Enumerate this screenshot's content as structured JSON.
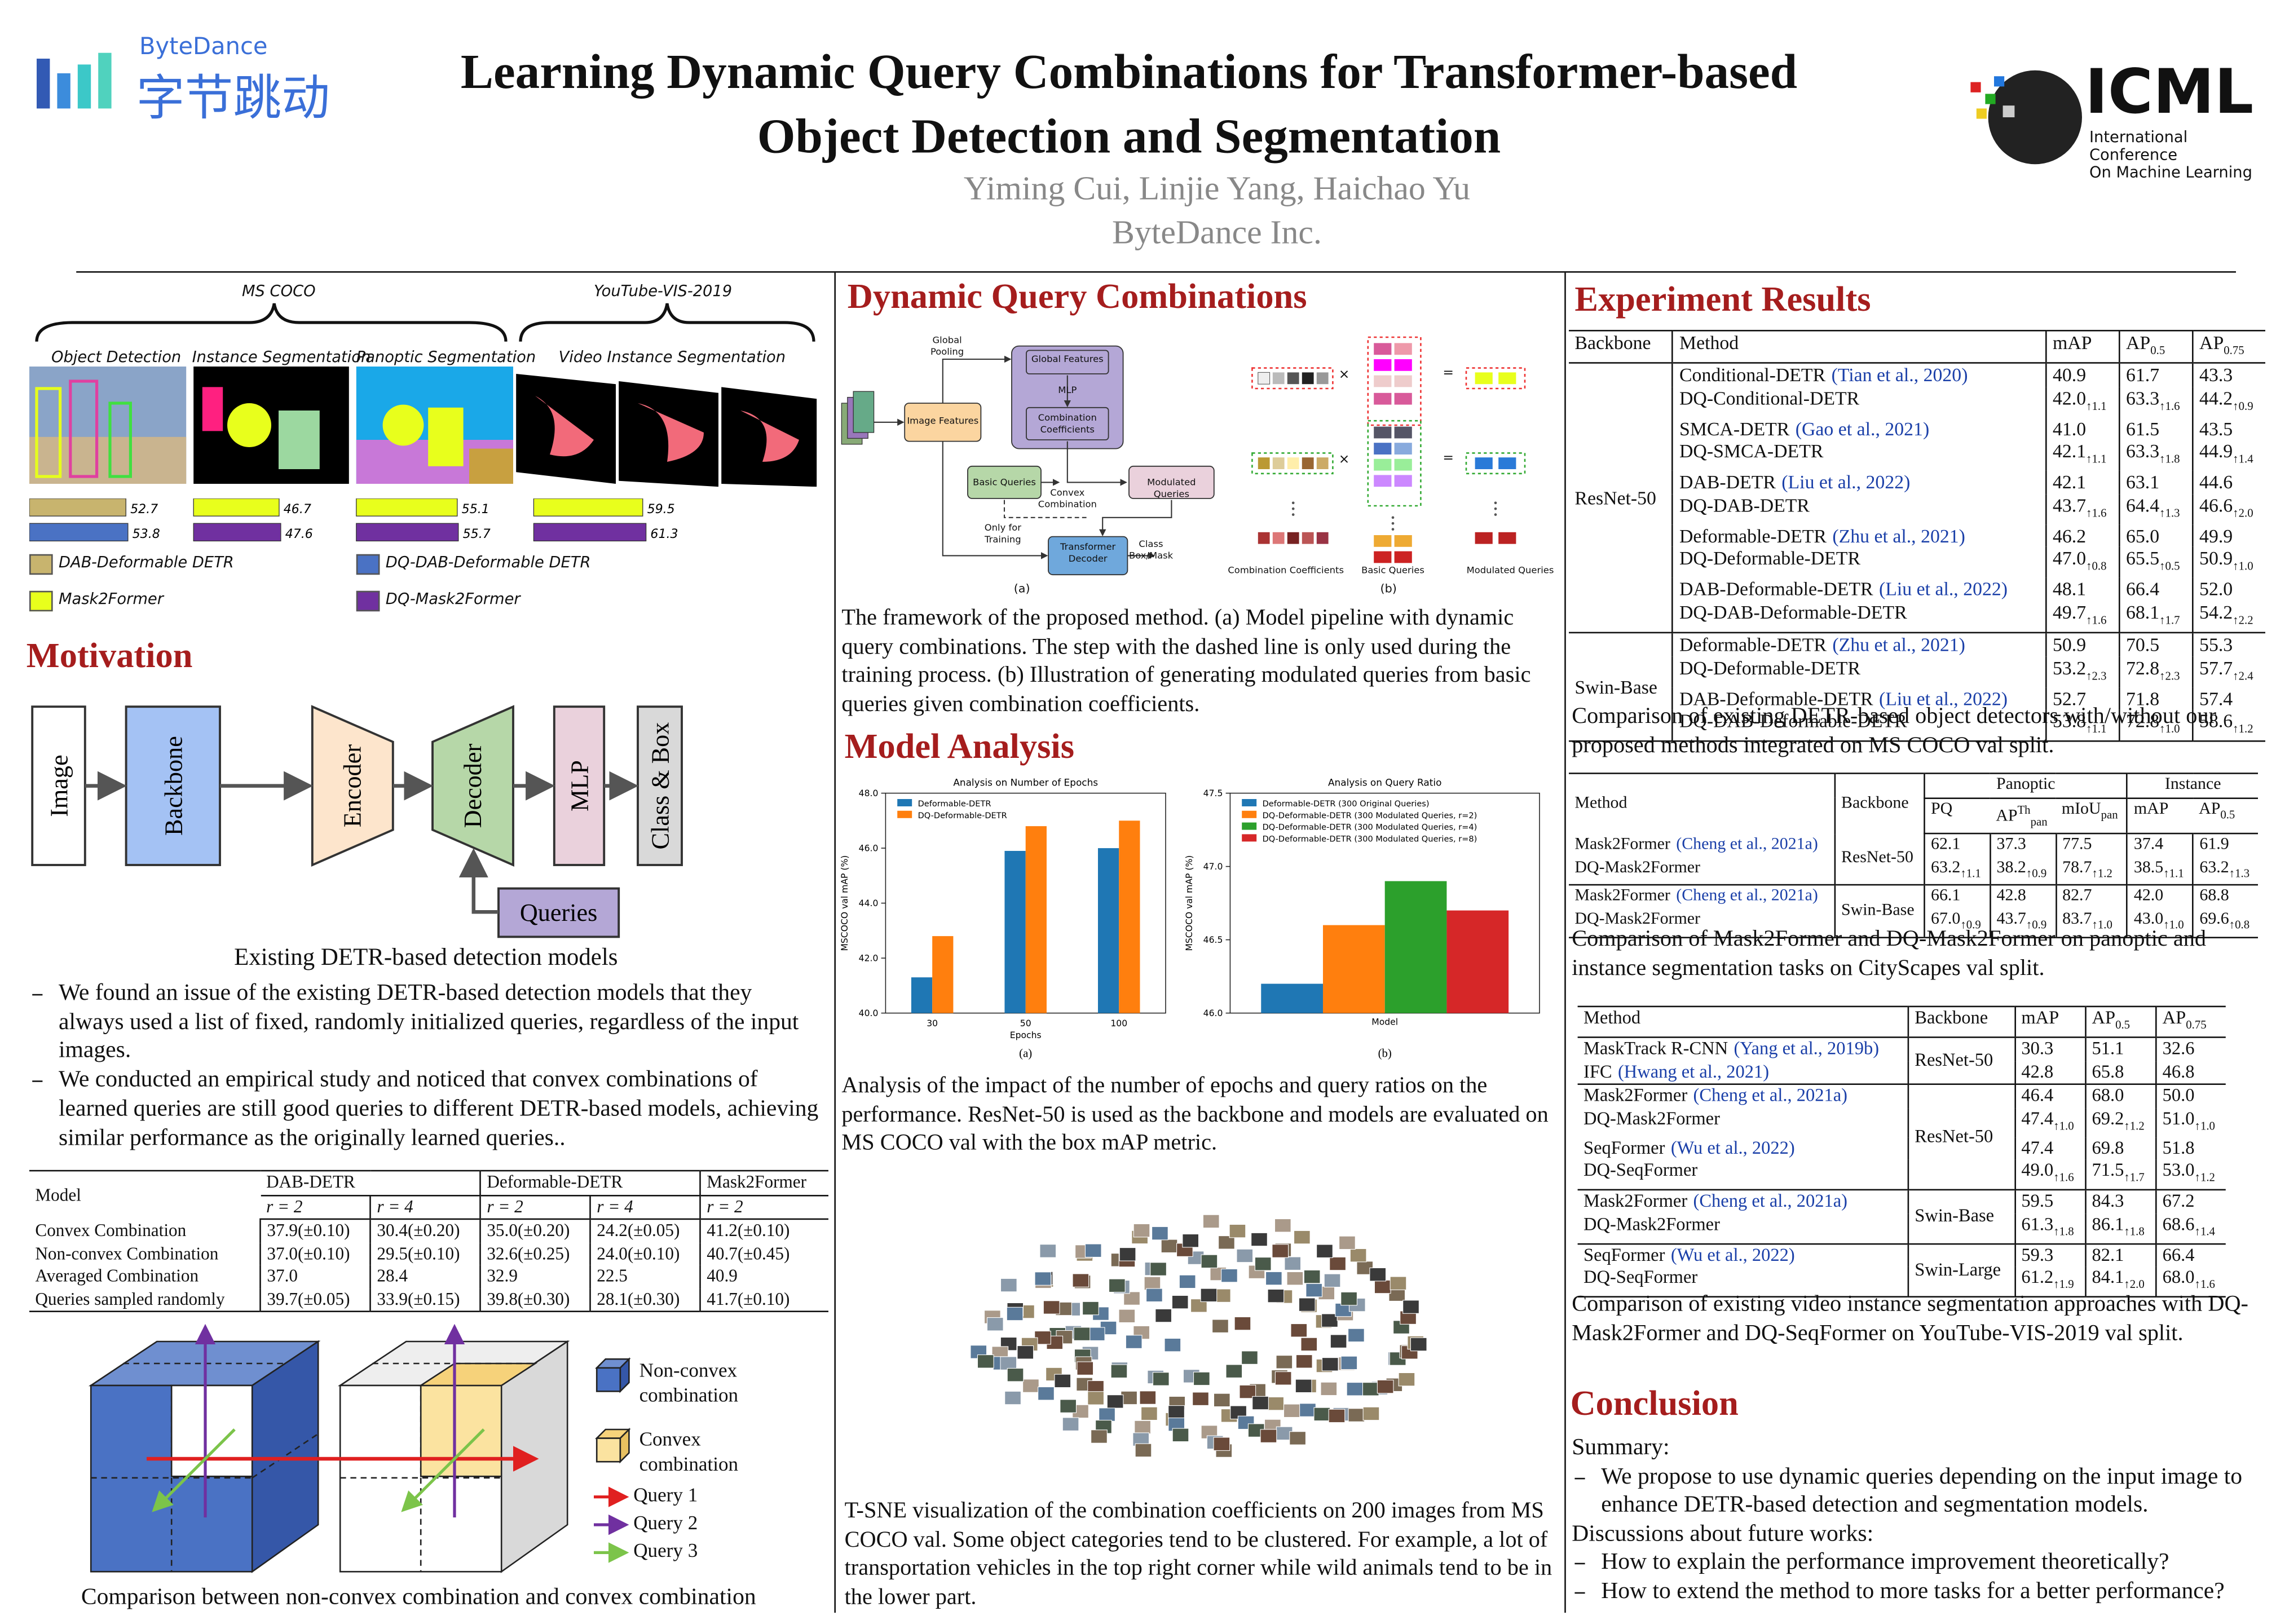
{
  "header": {
    "org_en": "ByteDance",
    "org_cn": "字节跳动",
    "title": [
      "Learning Dynamic Query Combinations for Transformer-based",
      "Object Detection and Segmentation"
    ],
    "authors": "Yiming Cui, Linjie Yang, Haichao Yu",
    "affiliation": "ByteDance Inc.",
    "conf": "ICML",
    "conf_full": [
      "International Conference",
      "On Machine Learning"
    ]
  },
  "teaser": {
    "datasets": [
      "MS COCO",
      "YouTube-VIS-2019"
    ],
    "tasks": [
      "Object Detection",
      "Instance Segmentation",
      "Panoptic Segmentation",
      "Video Instance Segmentation"
    ],
    "groups": [
      {
        "values": [
          52.7,
          53.8
        ],
        "colors": [
          "#c8b46e",
          "#4a72c4"
        ]
      },
      {
        "values": [
          46.7,
          47.6
        ],
        "colors": [
          "#e8ff1c",
          "#7030a0"
        ]
      },
      {
        "values": [
          55.1,
          55.7
        ],
        "colors": [
          "#e8ff1c",
          "#7030a0"
        ]
      },
      {
        "values": [
          59.5,
          61.3
        ],
        "colors": [
          "#e8ff1c",
          "#7030a0"
        ]
      }
    ],
    "legend": [
      {
        "name": "DAB-Deformable DETR",
        "color": "#c8b46e"
      },
      {
        "name": "Mask2Former",
        "color": "#e8ff1c"
      },
      {
        "name": "DQ-DAB-Deformable DETR",
        "color": "#4a72c4"
      },
      {
        "name": "DQ-Mask2Former",
        "color": "#7030a0"
      }
    ]
  },
  "motivation": {
    "heading": "Motivation",
    "pipeline": [
      "Image",
      "Backbone",
      "Encoder",
      "Decoder",
      "MLP",
      "Class & Box"
    ],
    "queries": "Queries",
    "caption": "Existing DETR-based detection models",
    "bullets": [
      "We found an issue of the existing DETR-based detection models that they always used a list of fixed, randomly initialized queries, regardless of the input images.",
      "We conducted an empirical study and noticed that convex combinations of learned queries are still good queries to different DETR-based models, achieving similar performance as the originally learned queries.."
    ],
    "table": {
      "header": [
        "Model",
        "DAB-DETR",
        "Deformable-DETR",
        "Mask2Former"
      ],
      "ratios": [
        "r = 2",
        "r = 4",
        "r = 2",
        "r = 4",
        "r = 2"
      ],
      "rows": [
        [
          "Convex Combination",
          "37.9(±0.10)",
          "30.4(±0.20)",
          "35.0(±0.20)",
          "24.2(±0.05)",
          "41.2(±0.10)"
        ],
        [
          "Non-convex Combination",
          "37.0(±0.10)",
          "29.5(±0.10)",
          "32.6(±0.25)",
          "24.0(±0.10)",
          "40.7(±0.45)"
        ],
        [
          "Averaged Combination",
          "37.0",
          "28.4",
          "32.9",
          "22.5",
          "40.9"
        ],
        [
          "Queries sampled randomly",
          "39.7(±0.05)",
          "33.9(±0.15)",
          "39.8(±0.30)",
          "28.1(±0.30)",
          "41.7(±0.10)"
        ]
      ]
    },
    "cube_legend": [
      "Non-convex combination",
      "Convex combination"
    ],
    "queries_legend": [
      "Query 1",
      "Query 2",
      "Query 3"
    ],
    "cube_caption": "Comparison between non-convex combination and convex combination"
  },
  "dynamic": {
    "heading": "Dynamic Query Combinations",
    "fig_a": {
      "global_pooling": "Global Pooling",
      "global_features": "Global Features",
      "mlp": "MLP",
      "coefficients": "Combination Coefficients",
      "image_features": "Image Features",
      "basic": "Basic Queries",
      "modulated": "Modulated Queries",
      "convex": "Convex Combination",
      "only_training": "Only for Training",
      "decoder": "Transformer Decoder",
      "output": "Class Box/Mask",
      "label": "(a)"
    },
    "fig_b": {
      "ops": [
        "×",
        "="
      ],
      "coefficients": "Combination Coefficients",
      "basic": "Basic Queries",
      "modulated": "Modulated Queries",
      "label": "(b)"
    },
    "caption": "The framework of the proposed method. (a) Model pipeline with dynamic query combinations. The step with the dashed line is only used during the training process. (b) Illustration of generating modulated queries from basic queries given combination coefficients."
  },
  "analysis": {
    "heading": "Model Analysis",
    "charts": [
      {
        "type": "bar",
        "title": "Analysis on Number of Epochs",
        "xlabel": "Epochs",
        "ylabel": "MSCOCO val mAP (%)",
        "label": "(a)",
        "categories": [
          "30",
          "50",
          "100"
        ],
        "series": [
          {
            "name": "Deformable-DETR",
            "color": "#1f77b4",
            "values": [
              41.3,
              45.9,
              46.0
            ]
          },
          {
            "name": "DQ-Deformable-DETR",
            "color": "#ff7f0e",
            "values": [
              42.8,
              46.8,
              47.0
            ]
          }
        ],
        "ylim": [
          40,
          48
        ],
        "yticks": [
          {
            "value": 40,
            "label": "40.0"
          },
          {
            "value": 42,
            "label": "42.0"
          },
          {
            "value": 44,
            "label": "44.0"
          },
          {
            "value": 46,
            "label": "46.0"
          },
          {
            "value": 48,
            "label": "48.0"
          }
        ]
      },
      {
        "type": "bar",
        "title": "Analysis on Query Ratio",
        "xlabel": "Model",
        "ylabel": "MSCOCO val mAP (%)",
        "label": "(b)",
        "categories": [
          null
        ],
        "series": [
          {
            "name": "Deformable-DETR (300 Original Queries)",
            "color": "#1f77b4",
            "values": [
              46.2
            ]
          },
          {
            "name": "DQ-Deformable-DETR (300 Modulated Queries, r=2)",
            "color": "#ff7f0e",
            "values": [
              46.6
            ]
          },
          {
            "name": "DQ-Deformable-DETR (300 Modulated Queries, r=4)",
            "color": "#2ca02c",
            "values": [
              46.9
            ]
          },
          {
            "name": "DQ-Deformable-DETR (300 Modulated Queries, r=8)",
            "color": "#d62728",
            "values": [
              46.7
            ]
          }
        ],
        "ylim": [
          46,
          47.5
        ],
        "yticks": [
          {
            "value": 46,
            "label": "46.0"
          },
          {
            "value": 46.5,
            "label": "46.5"
          },
          {
            "value": 47,
            "label": "47.0"
          },
          {
            "value": 47.5,
            "label": "47.5"
          }
        ]
      }
    ],
    "caption": "Analysis of the impact of the number of epochs and query ratios on the performance. ResNet-50 is used as the backbone and models are evaluated on MS COCO val with the box mAP metric.",
    "tsne_caption": "T-SNE visualization of the combination coefficients on 200 images from MS COCO val. Some object categories tend to be clustered. For example, a lot of transportation vehicles in the top right corner while wild animals tend to be in the lower part."
  },
  "experiments": {
    "heading": "Experiment Results",
    "table1": {
      "header": [
        "Backbone",
        "Method",
        "mAP",
        {
          "text": "AP",
          "sub": "0.5"
        },
        {
          "text": "AP",
          "sub": "0.75"
        }
      ],
      "groups": [
        {
          "backbone": "ResNet-50",
          "rows": [
            [
              {
                "text": "Conditional-DETR",
                "cite": "(Tian et al., 2020)"
              },
              "40.9",
              "61.7",
              "43.3"
            ],
            [
              "DQ-Conditional-DETR",
              {
                "text": "42.0",
                "sub": "↑1.1"
              },
              {
                "text": "63.3",
                "sub": "↑1.6"
              },
              {
                "text": "44.2",
                "sub": "↑0.9"
              }
            ],
            [
              {
                "text": "SMCA-DETR",
                "cite": "(Gao et al., 2021)"
              },
              "41.0",
              "61.5",
              "43.5"
            ],
            [
              "DQ-SMCA-DETR",
              {
                "text": "42.1",
                "sub": "↑1.1"
              },
              {
                "text": "63.3",
                "sub": "↑1.8"
              },
              {
                "text": "44.9",
                "sub": "↑1.4"
              }
            ],
            [
              {
                "text": "DAB-DETR",
                "cite": "(Liu et al., 2022)"
              },
              "42.1",
              "63.1",
              "44.6"
            ],
            [
              "DQ-DAB-DETR",
              {
                "text": "43.7",
                "sub": "↑1.6"
              },
              {
                "text": "64.4",
                "sub": "↑1.3"
              },
              {
                "text": "46.6",
                "sub": "↑2.0"
              }
            ],
            [
              {
                "text": "Deformable-DETR",
                "cite": "(Zhu et al., 2021)"
              },
              "46.2",
              "65.0",
              "49.9"
            ],
            [
              "DQ-Deformable-DETR",
              {
                "text": "47.0",
                "sub": "↑0.8"
              },
              {
                "text": "65.5",
                "sub": "↑0.5"
              },
              {
                "text": "50.9",
                "sub": "↑1.0"
              }
            ],
            [
              {
                "text": "DAB-Deformable-DETR",
                "cite": "(Liu et al., 2022)"
              },
              "48.1",
              "66.4",
              "52.0"
            ],
            [
              "DQ-DAB-Deformable-DETR",
              {
                "text": "49.7",
                "sub": "↑1.6"
              },
              {
                "text": "68.1",
                "sub": "↑1.7"
              },
              {
                "text": "54.2",
                "sub": "↑2.2"
              }
            ]
          ]
        },
        {
          "backbone": "Swin-Base",
          "rows": [
            [
              {
                "text": "Deformable-DETR",
                "cite": "(Zhu et al., 2021)"
              },
              "50.9",
              "70.5",
              "55.3"
            ],
            [
              "DQ-Deformable-DETR",
              {
                "text": "53.2",
                "sub": "↑2.3"
              },
              {
                "text": "72.8",
                "sub": "↑2.3"
              },
              {
                "text": "57.7",
                "sub": "↑2.4"
              }
            ],
            [
              {
                "text": "DAB-Deformable-DETR",
                "cite": "(Liu et al., 2022)"
              },
              "52.7",
              "71.8",
              "57.4"
            ],
            [
              "DQ-DAB-Deformable-DETR",
              {
                "text": "53.8",
                "sub": "↑1.1"
              },
              {
                "text": "72.8",
                "sub": "↑1.0"
              },
              {
                "text": "58.6",
                "sub": "↑1.2"
              }
            ]
          ]
        }
      ]
    },
    "caption1": "Comparison of existing DETR-based object detectors with/without our proposed methods integrated on MS COCO val split.",
    "table2": {
      "header": [
        "Method",
        "Backbone",
        "Panoptic",
        "Instance"
      ],
      "subheader": [
        "PQ",
        {
          "text": "AP",
          "sup": "Th",
          "sub": "pan"
        },
        {
          "text": "mIoU",
          "sub": "pan"
        },
        "mAP",
        {
          "text": "AP",
          "sub": "0.5"
        }
      ],
      "groups": [
        {
          "backbone": "ResNet-50",
          "rows": [
            [
              {
                "text": "Mask2Former",
                "cite": "(Cheng et al., 2021a)"
              },
              "62.1",
              "37.3",
              "77.5",
              "37.4",
              "61.9"
            ],
            [
              "DQ-Mask2Former",
              {
                "text": "63.2",
                "sub": "↑1.1"
              },
              {
                "text": "38.2",
                "sub": "↑0.9"
              },
              {
                "text": "78.7",
                "sub": "↑1.2"
              },
              {
                "text": "38.5",
                "sub": "↑1.1"
              },
              {
                "text": "63.2",
                "sub": "↑1.3"
              }
            ]
          ]
        },
        {
          "backbone": "Swin-Base",
          "rows": [
            [
              {
                "text": "Mask2Former",
                "cite": "(Cheng et al., 2021a)"
              },
              "66.1",
              "42.8",
              "82.7",
              "42.0",
              "68.8"
            ],
            [
              "DQ-Mask2Former",
              {
                "text": "67.0",
                "sub": "↑0.9"
              },
              {
                "text": "43.7",
                "sub": "↑0.9"
              },
              {
                "text": "83.7",
                "sub": "↑1.0"
              },
              {
                "text": "43.0",
                "sub": "↑1.0"
              },
              {
                "text": "69.6",
                "sub": "↑0.8"
              }
            ]
          ]
        }
      ]
    },
    "caption2": "Comparison of Mask2Former and DQ-Mask2Former on panoptic and instance segmentation tasks on CityScapes val split.",
    "table3": {
      "header": [
        "Method",
        "Backbone",
        "mAP",
        {
          "text": "AP",
          "sub": "0.5"
        },
        {
          "text": "AP",
          "sub": "0.75"
        }
      ],
      "groups": [
        {
          "backbone": "ResNet-50",
          "rows": [
            [
              {
                "text": "MaskTrack R-CNN",
                "cite": "(Yang et al., 2019b)"
              },
              "30.3",
              "51.1",
              "32.6"
            ],
            [
              {
                "text": "IFC",
                "cite": "(Hwang et al., 2021)"
              },
              "42.8",
              "65.8",
              "46.8"
            ]
          ]
        },
        {
          "backbone": "ResNet-50",
          "rows": [
            [
              {
                "text": "Mask2Former",
                "cite": "(Cheng et al., 2021a)"
              },
              "46.4",
              "68.0",
              "50.0"
            ],
            [
              "DQ-Mask2Former",
              {
                "text": "47.4",
                "sub": "↑1.0"
              },
              {
                "text": "69.2",
                "sub": "↑1.2"
              },
              {
                "text": "51.0",
                "sub": "↑1.0"
              }
            ],
            [
              {
                "text": "SeqFormer",
                "cite": "(Wu et al., 2022)"
              },
              "47.4",
              "69.8",
              "51.8"
            ],
            [
              "DQ-SeqFormer",
              {
                "text": "49.0",
                "sub": "↑1.6"
              },
              {
                "text": "71.5",
                "sub": "↑1.7"
              },
              {
                "text": "53.0",
                "sub": "↑1.2"
              }
            ]
          ]
        },
        {
          "backbone": "Swin-Base",
          "rows": [
            [
              {
                "text": "Mask2Former",
                "cite": "(Cheng et al., 2021a)"
              },
              "59.5",
              "84.3",
              "67.2"
            ],
            [
              "DQ-Mask2Former",
              {
                "text": "61.3",
                "sub": "↑1.8"
              },
              {
                "text": "86.1",
                "sub": "↑1.8"
              },
              {
                "text": "68.6",
                "sub": "↑1.4"
              }
            ]
          ]
        },
        {
          "backbone": "Swin-Large",
          "rows": [
            [
              {
                "text": "SeqFormer",
                "cite": "(Wu et al., 2022)"
              },
              "59.3",
              "82.1",
              "66.4"
            ],
            [
              "DQ-SeqFormer",
              {
                "text": "61.2",
                "sub": "↑1.9"
              },
              {
                "text": "84.1",
                "sub": "↑2.0"
              },
              {
                "text": "68.0",
                "sub": "↑1.6"
              }
            ]
          ]
        }
      ]
    },
    "caption3": "Comparison of existing video instance segmentation approaches with DQ-Mask2Former and DQ-SeqFormer on YouTube-VIS-2019 val split."
  },
  "conclusion": {
    "heading": "Conclusion",
    "summary_label": "Summary:",
    "summary": [
      "We propose to use dynamic queries depending on the input image to enhance DETR-based detection and segmentation models."
    ],
    "future_label": "Discussions about future works:",
    "future": [
      "How to explain the performance improvement theoretically?",
      "How to extend the method to more tasks for a better performance?"
    ]
  }
}
